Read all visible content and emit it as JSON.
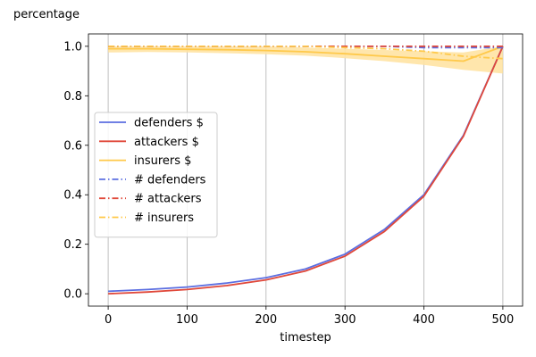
{
  "chart_data": {
    "type": "line",
    "title": "",
    "xlabel": "timestep",
    "ylabel": "percentage",
    "xlim": [
      -25,
      525
    ],
    "ylim": [
      -0.05,
      1.05
    ],
    "xticks": [
      0,
      100,
      200,
      300,
      400,
      500
    ],
    "yticks": [
      0.0,
      0.2,
      0.4,
      0.6,
      0.8,
      1.0
    ],
    "xtick_labels": [
      "0",
      "100",
      "200",
      "300",
      "400",
      "500"
    ],
    "ytick_labels": [
      "0.0",
      "0.2",
      "0.4",
      "0.6",
      "0.8",
      "1.0"
    ],
    "grid": "vertical",
    "legend_position": "center-left",
    "colors": {
      "defenders": "#5b6ee1",
      "attackers": "#e0483a",
      "insurers": "#ffc94a",
      "insurers_band": "#ffe3a3"
    },
    "x": [
      0,
      50,
      100,
      150,
      200,
      250,
      300,
      350,
      400,
      450,
      500
    ],
    "series": [
      {
        "name": "defenders $",
        "style": "solid",
        "color": "#5b6ee1",
        "values": [
          0.01,
          0.017,
          0.027,
          0.043,
          0.065,
          0.1,
          0.16,
          0.26,
          0.4,
          0.64,
          1.0
        ]
      },
      {
        "name": "attackers $",
        "style": "solid",
        "color": "#e0483a",
        "values": [
          0.0,
          0.007,
          0.017,
          0.033,
          0.056,
          0.092,
          0.152,
          0.252,
          0.394,
          0.636,
          1.0
        ]
      },
      {
        "name": "insurers $",
        "style": "solid",
        "color": "#ffc94a",
        "values": [
          0.99,
          0.99,
          0.988,
          0.986,
          0.983,
          0.978,
          0.97,
          0.96,
          0.95,
          0.94,
          1.0
        ],
        "band_lower": [
          0.975,
          0.977,
          0.975,
          0.972,
          0.968,
          0.962,
          0.952,
          0.94,
          0.925,
          0.905,
          0.89
        ],
        "band_upper": [
          1.0,
          1.0,
          1.0,
          1.0,
          1.0,
          0.995,
          0.99,
          0.985,
          0.98,
          0.975,
          1.0
        ]
      },
      {
        "name": "# defenders",
        "style": "dashdot",
        "color": "#5b6ee1",
        "values": [
          1.0,
          1.0,
          1.0,
          1.0,
          1.0,
          1.0,
          1.0,
          1.0,
          0.995,
          0.995,
          0.995
        ]
      },
      {
        "name": "# attackers",
        "style": "dashdot",
        "color": "#e0483a",
        "values": [
          1.0,
          1.0,
          1.0,
          1.0,
          1.0,
          1.0,
          1.0,
          1.0,
          1.0,
          1.0,
          1.0
        ]
      },
      {
        "name": "# insurers",
        "style": "dashdot",
        "color": "#ffc94a",
        "values": [
          1.0,
          1.0,
          1.0,
          1.0,
          1.0,
          1.0,
          0.995,
          0.99,
          0.98,
          0.96,
          0.95
        ]
      }
    ]
  }
}
